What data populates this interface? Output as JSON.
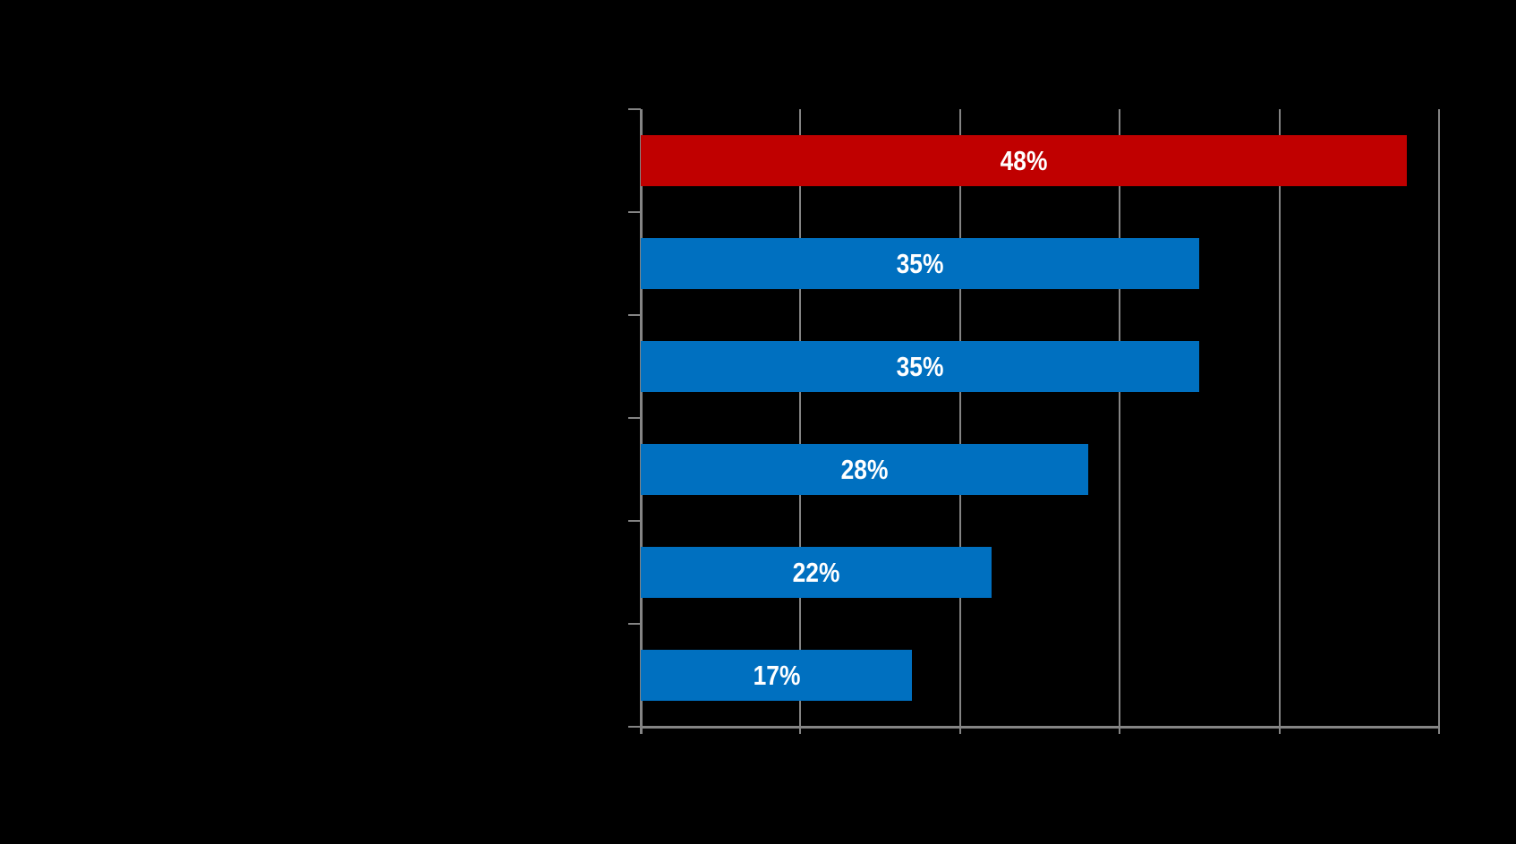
{
  "chart_data": {
    "type": "bar",
    "orientation": "horizontal",
    "title": "",
    "categories": [
      "",
      "",
      "",
      "",
      "",
      ""
    ],
    "values": [
      48,
      35,
      35,
      28,
      22,
      17
    ],
    "bar_labels": [
      "48%",
      "35%",
      "35%",
      "28%",
      "22%",
      "17%"
    ],
    "xlabel": "",
    "ylabel": "",
    "xlim": [
      0,
      50
    ],
    "gridline_values": [
      10,
      20,
      30,
      40,
      50
    ],
    "x_tick_values": [
      0,
      10,
      20,
      30,
      40,
      50
    ],
    "grid": true,
    "legend": false,
    "colors": {
      "highlight_bar": "#C00000",
      "default_bar": "#0070C0",
      "bar_label_text": "#FFFFFF",
      "axis": "#848484",
      "gridline": "#848484",
      "background": "#000000"
    },
    "bar_colors": [
      "#C00000",
      "#0070C0",
      "#0070C0",
      "#0070C0",
      "#0070C0",
      "#0070C0"
    ]
  }
}
